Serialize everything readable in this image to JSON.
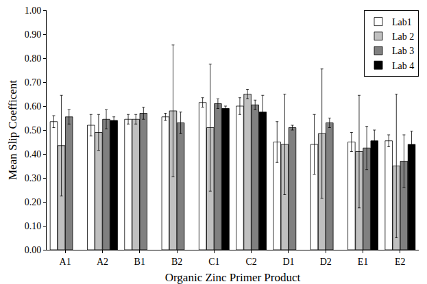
{
  "chart_data": {
    "type": "bar",
    "x_label": "Organic Zinc Primer Product",
    "y_label": "Mean Slip Coefficent",
    "categories": [
      "A1",
      "A2",
      "B1",
      "B2",
      "C1",
      "C2",
      "D1",
      "D2",
      "E1",
      "E2"
    ],
    "series": [
      {
        "name": "Lab1",
        "color": "#ffffff",
        "values": [
          0.535,
          0.52,
          0.545,
          0.555,
          0.615,
          0.6,
          0.45,
          0.44,
          0.45,
          0.455
        ],
        "error": [
          0.025,
          0.045,
          0.02,
          0.015,
          0.02,
          0.035,
          0.085,
          0.125,
          0.04,
          0.025
        ]
      },
      {
        "name": "Lab 2",
        "color": "#c0c0c0",
        "values": [
          0.435,
          0.49,
          0.545,
          0.58,
          0.51,
          0.65,
          0.44,
          0.485,
          0.41,
          0.35
        ],
        "error": [
          0.21,
          0.075,
          0.02,
          0.275,
          0.265,
          0.02,
          0.21,
          0.27,
          0.235,
          0.3
        ]
      },
      {
        "name": "Lab 3",
        "color": "#808080",
        "values": [
          0.555,
          0.545,
          0.57,
          0.53,
          0.61,
          0.605,
          0.51,
          0.53,
          0.425,
          0.37
        ],
        "error": [
          0.03,
          0.04,
          0.025,
          0.045,
          0.02,
          0.02,
          0.01,
          0.02,
          0.09,
          0.11
        ]
      },
      {
        "name": "Lab 4",
        "color": "#000000",
        "values": [
          null,
          0.54,
          null,
          null,
          0.59,
          0.575,
          null,
          null,
          0.455,
          0.44
        ],
        "error": [
          null,
          0.015,
          null,
          null,
          0.01,
          0.07,
          null,
          null,
          0.045,
          0.055
        ]
      }
    ],
    "ylim": [
      0,
      1
    ],
    "yticks": [
      {
        "value": 0,
        "label": "0.00"
      },
      {
        "value": 0.1,
        "label": "0.10"
      },
      {
        "value": 0.2,
        "label": "0.20"
      },
      {
        "value": 0.3,
        "label": "0.30"
      },
      {
        "value": 0.4,
        "label": "0.40"
      },
      {
        "value": 0.5,
        "label": "0.50"
      },
      {
        "value": 0.6,
        "label": "0.60"
      },
      {
        "value": 0.7,
        "label": "0.70"
      },
      {
        "value": 0.8,
        "label": "0.80"
      },
      {
        "value": 0.9,
        "label": "0.90"
      },
      {
        "value": 1,
        "label": "1.00"
      }
    ],
    "grid": false,
    "legend": "top-right"
  }
}
